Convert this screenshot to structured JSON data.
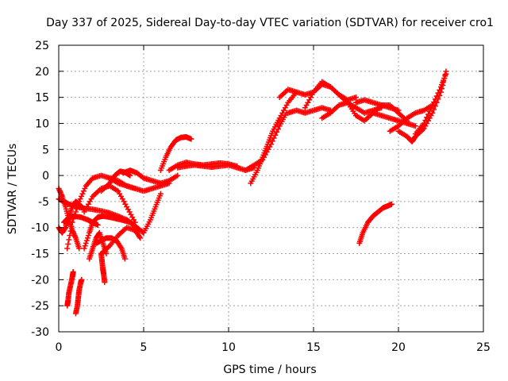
{
  "chart_data": {
    "type": "scatter",
    "title": "Day 337 of 2025, Sidereal Day-to-day VTEC variation (SDTVAR) for receiver cro1",
    "xlabel": "GPS time / hours",
    "ylabel": "SDTVAR / TECUs",
    "xlim": [
      0,
      25
    ],
    "ylim": [
      -30,
      25
    ],
    "x_ticks": [
      0,
      5,
      10,
      15,
      20,
      25
    ],
    "y_ticks": [
      -30,
      -25,
      -20,
      -15,
      -10,
      -5,
      0,
      5,
      10,
      15,
      20,
      25
    ],
    "grid": true,
    "legend": "none",
    "marker": "+",
    "color": "#ff0000",
    "series": [
      {
        "name": "arc-01",
        "x": [
          0.0,
          0.2,
          0.4,
          0.6,
          0.8,
          1.0,
          1.2
        ],
        "y": [
          -2.5,
          -4.0,
          -6.0,
          -8.5,
          -10.5,
          -12.0,
          -14.0
        ]
      },
      {
        "name": "arc-02",
        "x": [
          0.0,
          0.2,
          0.4,
          0.6,
          0.8,
          1.0,
          1.2,
          1.5
        ],
        "y": [
          -10.0,
          -11.0,
          -10.0,
          -8.0,
          -6.0,
          -5.0,
          -5.5,
          -6.5
        ]
      },
      {
        "name": "arc-03",
        "x": [
          0.0,
          0.3,
          0.6,
          1.0,
          1.5,
          2.0,
          2.5,
          3.0,
          3.5,
          4.0
        ],
        "y": [
          -4.5,
          -5.0,
          -5.5,
          -6.0,
          -6.3,
          -6.5,
          -6.8,
          -7.2,
          -7.8,
          -8.5
        ]
      },
      {
        "name": "arc-04",
        "x": [
          4.0,
          4.3,
          4.6,
          5.0,
          5.4,
          5.7,
          6.0
        ],
        "y": [
          -8.5,
          -9.2,
          -10.0,
          -11.0,
          -8.5,
          -6.0,
          -3.5
        ]
      },
      {
        "name": "arc-05",
        "x": [
          0.3,
          0.6,
          0.9,
          1.3,
          1.7,
          2.0,
          2.3
        ],
        "y": [
          -9.0,
          -8.0,
          -7.8,
          -8.0,
          -8.5,
          -9.0,
          -9.5
        ]
      },
      {
        "name": "arc-06",
        "x": [
          1.5,
          1.8,
          2.0,
          2.3,
          2.6
        ],
        "y": [
          -14.0,
          -11.0,
          -9.0,
          -8.0,
          -7.8
        ]
      },
      {
        "name": "arc-07",
        "x": [
          2.6,
          3.0,
          3.4,
          3.8,
          4.2,
          4.6,
          5.0
        ],
        "y": [
          -7.8,
          -8.0,
          -8.3,
          -8.6,
          -9.0,
          -10.0,
          -11.0
        ]
      },
      {
        "name": "arc-08",
        "x": [
          0.5,
          0.8,
          1.2,
          1.6,
          2.0,
          2.5,
          3.0,
          3.5,
          4.0,
          4.5
        ],
        "y": [
          -14.0,
          -9.0,
          -5.0,
          -2.0,
          -0.5,
          0.0,
          -0.5,
          -1.5,
          -2.0,
          -2.5
        ]
      },
      {
        "name": "arc-09",
        "x": [
          2.5,
          3.0,
          3.3,
          3.6,
          3.9,
          4.2
        ],
        "y": [
          -3.0,
          -1.5,
          0.0,
          0.8,
          0.6,
          0.0
        ]
      },
      {
        "name": "arc-10",
        "x": [
          1.5,
          2.0,
          2.5,
          3.0,
          3.5,
          4.0,
          4.5
        ],
        "y": [
          -7.0,
          -4.0,
          -2.5,
          -2.0,
          -3.0,
          -6.0,
          -9.0
        ]
      },
      {
        "name": "arc-11",
        "x": [
          3.0,
          3.5,
          4.0,
          4.5,
          5.0,
          5.5,
          6.0,
          6.5
        ],
        "y": [
          -0.5,
          -1.0,
          -2.0,
          -2.5,
          -3.0,
          -2.5,
          -2.0,
          -1.5
        ]
      },
      {
        "name": "arc-12",
        "x": [
          3.8,
          4.2,
          4.6,
          5.0,
          5.5,
          6.0,
          6.5,
          7.0
        ],
        "y": [
          0.5,
          1.0,
          0.5,
          -0.5,
          -1.0,
          -1.5,
          -1.0,
          0.0
        ]
      },
      {
        "name": "arc-13",
        "x": [
          1.8,
          2.0,
          2.2,
          2.4,
          2.6,
          2.8
        ],
        "y": [
          -16.0,
          -14.0,
          -12.0,
          -11.0,
          -13.0,
          -15.0
        ]
      },
      {
        "name": "arc-14",
        "x": [
          2.2,
          2.5,
          2.8,
          3.1,
          3.4,
          3.7,
          3.9
        ],
        "y": [
          -13.0,
          -12.5,
          -12.0,
          -12.0,
          -12.5,
          -14.0,
          -16.0
        ]
      },
      {
        "name": "arc-15",
        "x": [
          2.5,
          3.0,
          3.5,
          4.0,
          4.5,
          4.8
        ],
        "y": [
          -15.0,
          -13.5,
          -11.5,
          -10.0,
          -10.5,
          -12.0
        ]
      },
      {
        "name": "arc-16",
        "x": [
          0.5,
          0.55,
          0.6,
          0.7,
          0.8,
          0.85
        ],
        "y": [
          -25.0,
          -24.0,
          -22.5,
          -21.0,
          -19.5,
          -18.5
        ]
      },
      {
        "name": "arc-17",
        "x": [
          1.0,
          1.1,
          1.15,
          1.2,
          1.3,
          1.35
        ],
        "y": [
          -26.5,
          -25.0,
          -23.5,
          -22.0,
          -20.5,
          -20.0
        ]
      },
      {
        "name": "arc-18",
        "x": [
          2.5,
          2.55,
          2.6,
          2.65,
          2.7
        ],
        "y": [
          -15.0,
          -16.5,
          -18.0,
          -19.0,
          -20.5
        ]
      },
      {
        "name": "arc-19",
        "x": [
          6.0,
          6.3,
          6.6,
          6.9,
          7.2,
          7.5,
          7.8
        ],
        "y": [
          1.0,
          3.5,
          5.5,
          6.8,
          7.3,
          7.4,
          7.0
        ]
      },
      {
        "name": "arc-20",
        "x": [
          6.5,
          7.0,
          7.5,
          8.0,
          8.5,
          9.0,
          9.5,
          10.0,
          10.5
        ],
        "y": [
          1.0,
          2.0,
          2.5,
          2.2,
          2.0,
          2.2,
          2.4,
          2.2,
          1.8
        ]
      },
      {
        "name": "arc-21",
        "x": [
          7.0,
          7.5,
          8.0,
          8.5,
          9.0,
          9.5,
          10.0,
          10.5,
          11.0,
          11.5
        ],
        "y": [
          1.5,
          1.8,
          2.0,
          1.8,
          1.6,
          1.8,
          2.0,
          1.5,
          1.0,
          1.5
        ]
      },
      {
        "name": "arc-22",
        "x": [
          11.0,
          11.5,
          12.0,
          12.5,
          13.0,
          13.4
        ],
        "y": [
          1.0,
          2.0,
          3.0,
          6.0,
          9.5,
          12.0
        ]
      },
      {
        "name": "arc-23",
        "x": [
          11.3,
          11.7,
          12.0,
          12.3,
          12.6,
          13.0,
          13.5,
          14.0
        ],
        "y": [
          -1.5,
          1.0,
          3.5,
          6.0,
          8.5,
          11.0,
          14.0,
          16.0
        ]
      },
      {
        "name": "arc-24",
        "x": [
          13.0,
          13.5,
          14.0,
          14.5,
          15.0,
          15.5,
          16.0
        ],
        "y": [
          15.0,
          16.5,
          16.0,
          15.5,
          16.0,
          17.5,
          17.0
        ]
      },
      {
        "name": "arc-25",
        "x": [
          13.5,
          14.0,
          14.5,
          15.0,
          15.5,
          16.0
        ],
        "y": [
          12.0,
          12.5,
          12.0,
          12.5,
          13.0,
          12.5
        ]
      },
      {
        "name": "arc-26",
        "x": [
          14.5,
          15.0,
          15.5,
          16.0,
          16.5,
          17.0,
          17.5
        ],
        "y": [
          13.0,
          16.0,
          18.0,
          17.0,
          15.5,
          14.5,
          15.0
        ]
      },
      {
        "name": "arc-27",
        "x": [
          15.5,
          16.0,
          16.5,
          17.0,
          17.5,
          18.0,
          18.5,
          19.0
        ],
        "y": [
          11.0,
          12.0,
          13.5,
          14.0,
          13.0,
          12.0,
          12.5,
          13.0
        ]
      },
      {
        "name": "arc-28",
        "x": [
          16.5,
          17.0,
          17.5,
          18.0,
          18.5,
          19.0,
          19.5,
          20.0
        ],
        "y": [
          15.5,
          14.0,
          11.5,
          10.5,
          12.0,
          13.5,
          13.0,
          12.5
        ]
      },
      {
        "name": "arc-29",
        "x": [
          17.5,
          18.0,
          18.5,
          19.0,
          19.5,
          20.0,
          20.5
        ],
        "y": [
          14.0,
          14.5,
          14.0,
          13.5,
          13.5,
          12.0,
          10.5
        ]
      },
      {
        "name": "arc-30",
        "x": [
          18.5,
          19.0,
          19.5,
          20.0,
          20.5,
          21.0
        ],
        "y": [
          12.0,
          11.5,
          11.0,
          10.5,
          10.0,
          9.5
        ]
      },
      {
        "name": "arc-31",
        "x": [
          19.5,
          20.0,
          20.5,
          21.0,
          21.5,
          22.0
        ],
        "y": [
          8.5,
          9.5,
          11.0,
          12.0,
          12.5,
          13.5
        ]
      },
      {
        "name": "arc-32",
        "x": [
          20.0,
          20.5,
          20.8,
          21.0,
          21.5,
          22.0,
          22.5,
          22.8
        ],
        "y": [
          8.5,
          7.5,
          6.5,
          7.5,
          9.0,
          12.0,
          16.0,
          20.0
        ]
      },
      {
        "name": "arc-33",
        "x": [
          21.0,
          21.5,
          22.0,
          22.5,
          22.8
        ],
        "y": [
          8.0,
          10.0,
          13.5,
          17.0,
          19.5
        ]
      },
      {
        "name": "arc-34",
        "x": [
          17.7,
          17.9,
          18.2,
          18.5,
          18.8,
          19.1,
          19.4,
          19.6
        ],
        "y": [
          -13.0,
          -11.0,
          -9.0,
          -7.8,
          -7.0,
          -6.2,
          -5.8,
          -5.5
        ]
      }
    ]
  }
}
